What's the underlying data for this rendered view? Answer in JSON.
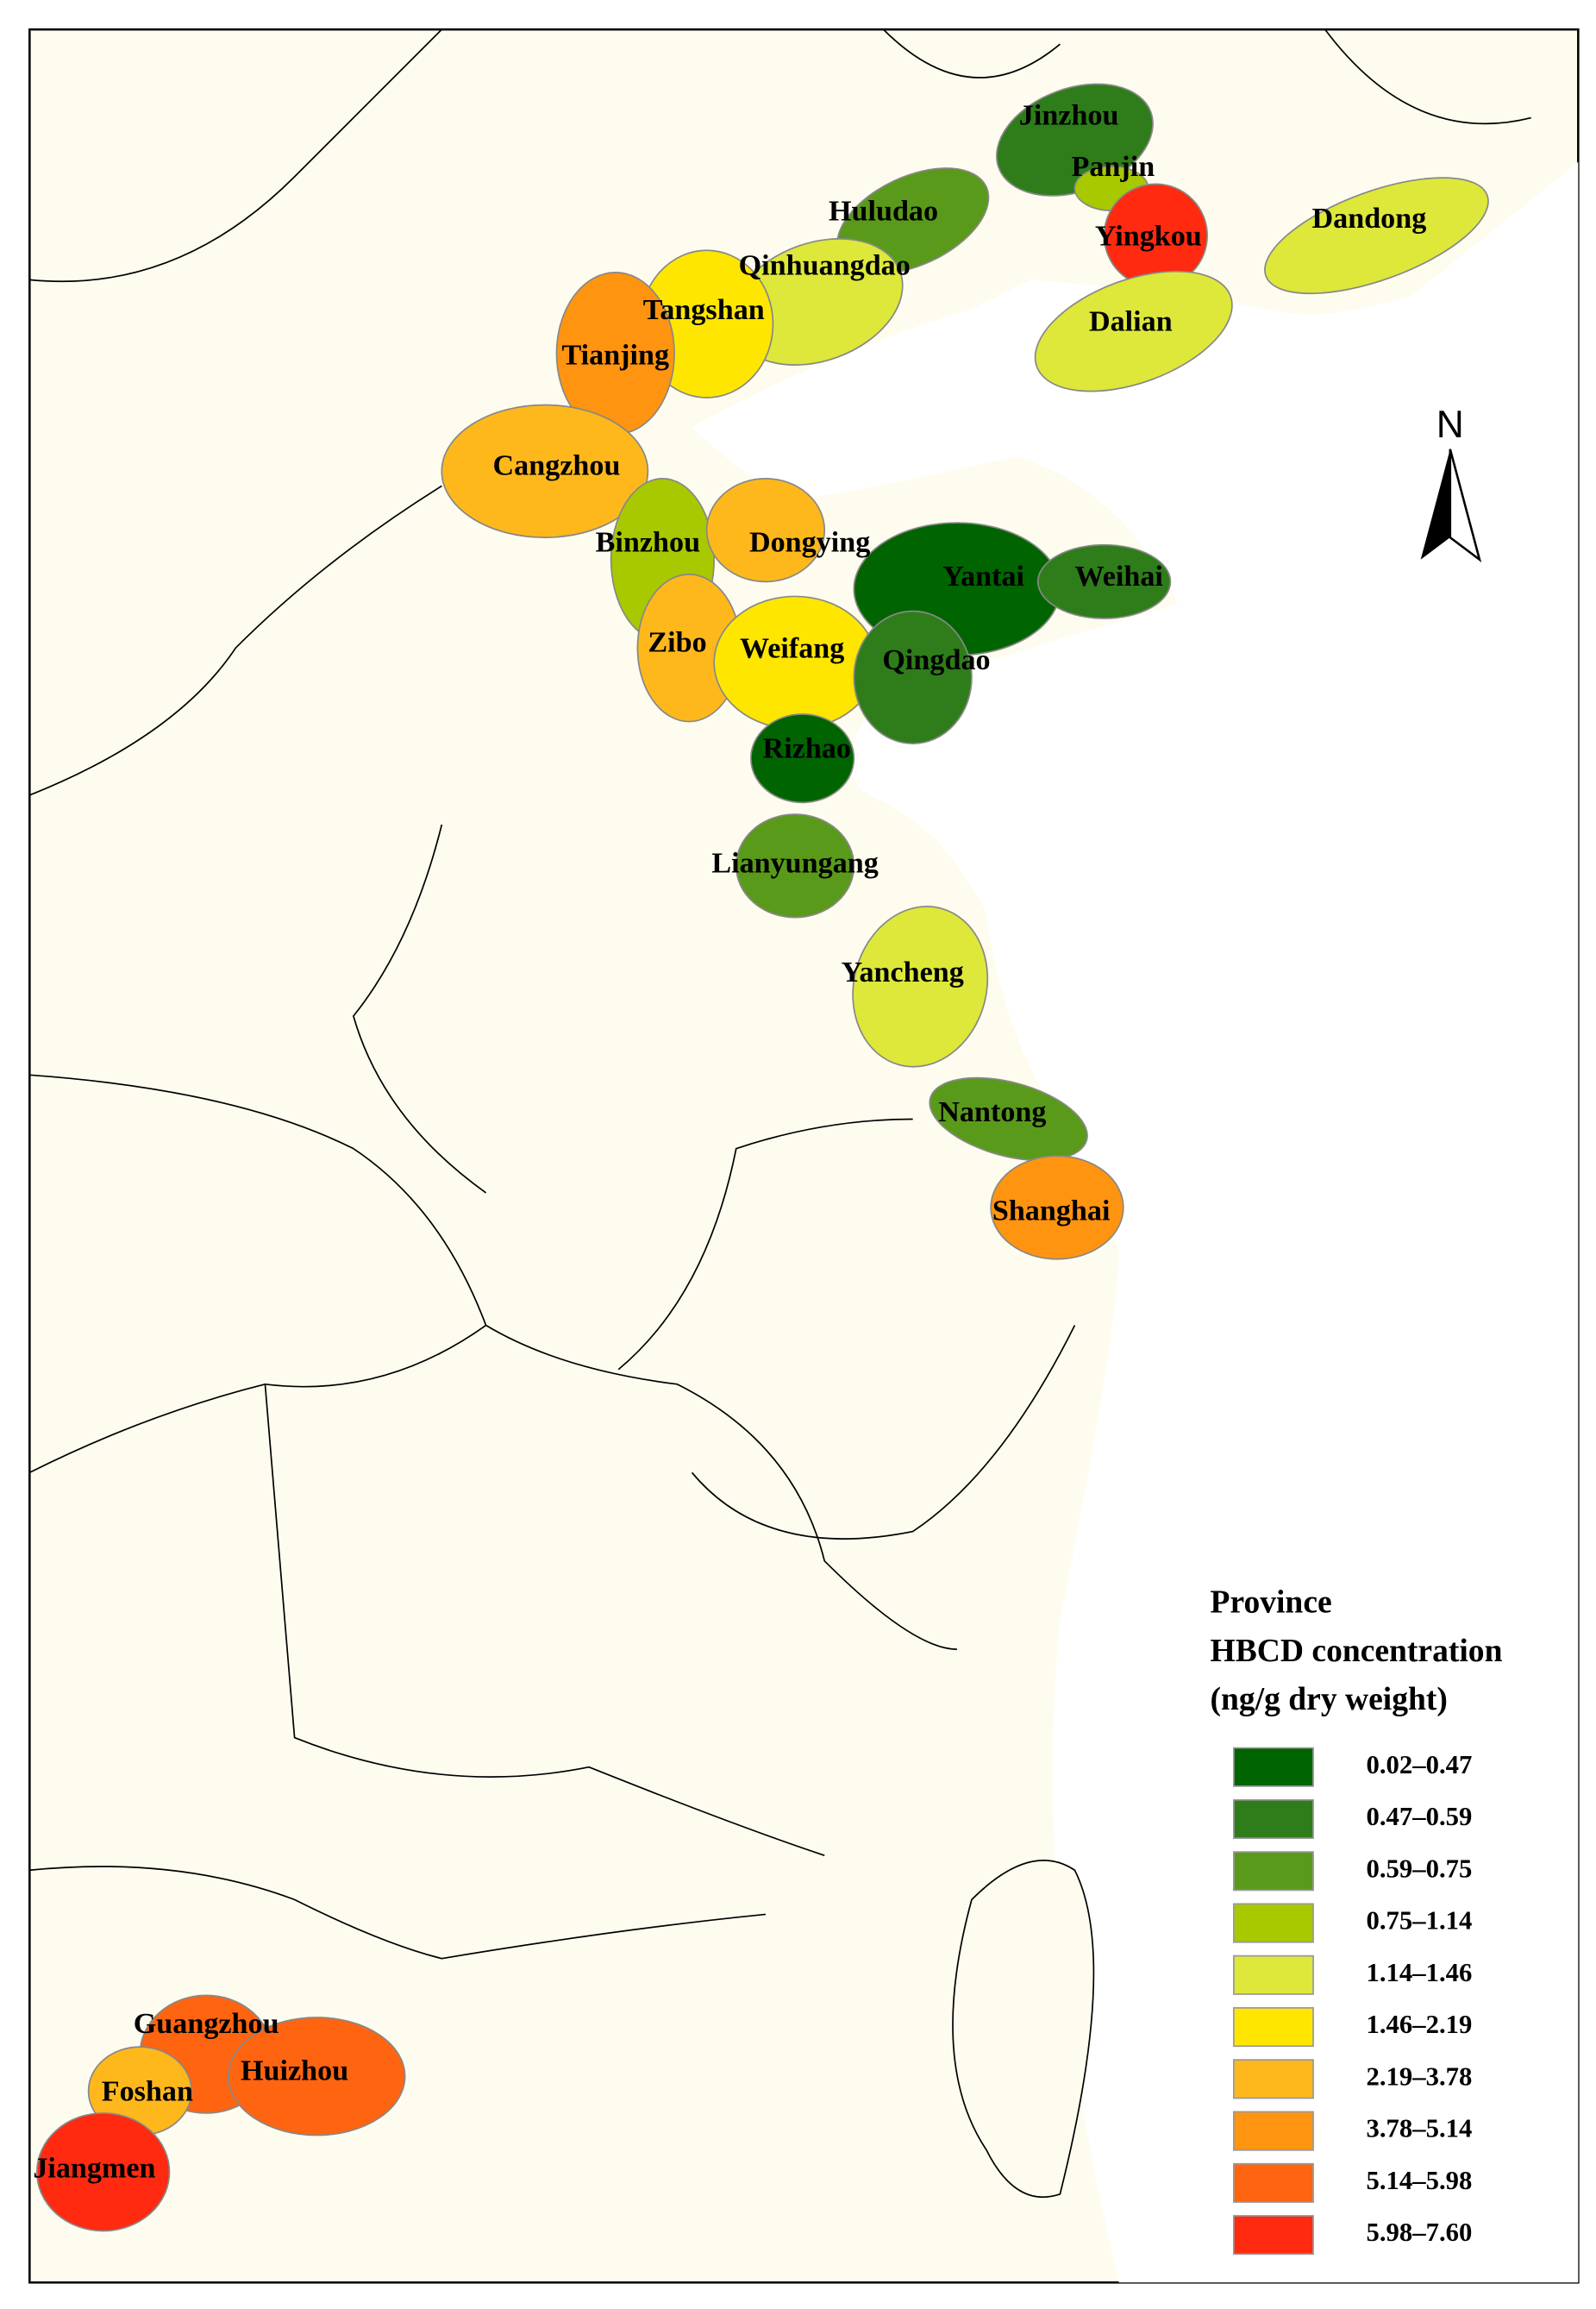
{
  "north": "N",
  "legend": {
    "title": [
      "Province",
      "HBCD concentration",
      "(ng/g dry weight)"
    ],
    "classes": [
      {
        "label": "0.02–0.47",
        "color": "#006400"
      },
      {
        "label": "0.47–0.59",
        "color": "#2e7d1a"
      },
      {
        "label": "0.59–0.75",
        "color": "#5a9a1a"
      },
      {
        "label": "0.75–1.14",
        "color": "#a8c800"
      },
      {
        "label": "1.14–1.46",
        "color": "#dde83a"
      },
      {
        "label": "1.46–2.19",
        "color": "#ffe600"
      },
      {
        "label": "2.19–3.78",
        "color": "#ffb81c"
      },
      {
        "label": "3.78–5.14",
        "color": "#ff9410"
      },
      {
        "label": "5.14–5.98",
        "color": "#ff6410"
      },
      {
        "label": "5.98–7.60",
        "color": "#ff2a10"
      }
    ]
  },
  "cities": [
    {
      "name": "Jinzhou",
      "color": "#2e7d1a"
    },
    {
      "name": "Panjin",
      "color": "#a8c800"
    },
    {
      "name": "Huludao",
      "color": "#5a9a1a"
    },
    {
      "name": "Yingkou",
      "color": "#ff2a10"
    },
    {
      "name": "Dandong",
      "color": "#dde83a"
    },
    {
      "name": "Qinhuangdao",
      "color": "#dde83a"
    },
    {
      "name": "Tangshan",
      "color": "#ffe600"
    },
    {
      "name": "Dalian",
      "color": "#dde83a"
    },
    {
      "name": "Tianjing",
      "color": "#ff9410"
    },
    {
      "name": "Cangzhou",
      "color": "#ffb81c"
    },
    {
      "name": "Binzhou",
      "color": "#a8c800"
    },
    {
      "name": "Dongying",
      "color": "#ffb81c"
    },
    {
      "name": "Yantai",
      "color": "#006400"
    },
    {
      "name": "Weihai",
      "color": "#2e7d1a"
    },
    {
      "name": "Zibo",
      "color": "#ffb81c"
    },
    {
      "name": "Weifang",
      "color": "#ffe600"
    },
    {
      "name": "Qingdao",
      "color": "#2e7d1a"
    },
    {
      "name": "Rizhao",
      "color": "#006400"
    },
    {
      "name": "Lianyungang",
      "color": "#5a9a1a"
    },
    {
      "name": "Yancheng",
      "color": "#dde83a"
    },
    {
      "name": "Nantong",
      "color": "#5a9a1a"
    },
    {
      "name": "Shanghai",
      "color": "#ff9410"
    },
    {
      "name": "Guangzhou",
      "color": "#ff6410"
    },
    {
      "name": "Huizhou",
      "color": "#ff6410"
    },
    {
      "name": "Foshan",
      "color": "#ffb81c"
    },
    {
      "name": "Jiangmen",
      "color": "#ff2a10"
    }
  ]
}
